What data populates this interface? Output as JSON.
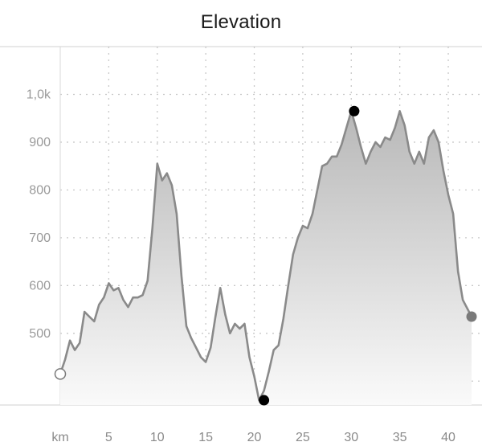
{
  "header": {
    "title": "Elevation"
  },
  "chart_data": {
    "type": "area",
    "title": "Elevation",
    "xlabel": "km",
    "ylabel": "",
    "xlim": [
      0,
      42.4
    ],
    "ylim": [
      350,
      1100
    ],
    "yticks": [
      500,
      600,
      700,
      800,
      900,
      1000
    ],
    "ytick_labels": [
      "500",
      "600",
      "700",
      "800",
      "900",
      "1,0k"
    ],
    "xticks": [
      5,
      10,
      15,
      20,
      25,
      30,
      35,
      40
    ],
    "xtick_labels": [
      "5",
      "10",
      "15",
      "20",
      "25",
      "30",
      "35",
      "40"
    ],
    "grid": true,
    "colors": {
      "line": "#8a8a8a",
      "fill_top": "#b8b8b8",
      "fill_bottom": "#fafafa",
      "grid": "#c8c8c8",
      "marker": "#000000",
      "end_marker": "#7a7a7a"
    },
    "series": [
      {
        "x": [
          0,
          0.5,
          1,
          1.5,
          2,
          2.5,
          3,
          3.5,
          4,
          4.5,
          5,
          5.5,
          6,
          6.5,
          7,
          7.5,
          8,
          8.5,
          9,
          9.5,
          10,
          10.5,
          11,
          11.5,
          12,
          12.5,
          13,
          13.5,
          14,
          14.5,
          15,
          15.5,
          16,
          16.5,
          17,
          17.5,
          18,
          18.5,
          19,
          19.5,
          20,
          20.5,
          21,
          21.5,
          22,
          22.5,
          23,
          23.5,
          24,
          24.5,
          25,
          25.5,
          26,
          26.5,
          27,
          27.5,
          28,
          28.5,
          29,
          29.5,
          30,
          30.5,
          31,
          31.5,
          32,
          32.5,
          33,
          33.5,
          34,
          34.5,
          35,
          35.5,
          36,
          36.5,
          37,
          37.5,
          38,
          38.5,
          39,
          39.5,
          40,
          40.5,
          41,
          41.5,
          42.4
        ],
        "y": [
          415,
          445,
          485,
          465,
          480,
          545,
          535,
          525,
          560,
          575,
          605,
          590,
          595,
          570,
          555,
          575,
          575,
          580,
          610,
          720,
          855,
          820,
          835,
          810,
          750,
          620,
          515,
          490,
          470,
          450,
          440,
          470,
          535,
          595,
          540,
          500,
          520,
          510,
          520,
          450,
          410,
          360,
          380,
          420,
          465,
          475,
          530,
          600,
          665,
          700,
          725,
          720,
          750,
          800,
          850,
          855,
          870,
          870,
          895,
          930,
          965,
          930,
          890,
          855,
          880,
          900,
          890,
          910,
          905,
          930,
          965,
          935,
          880,
          855,
          880,
          855,
          910,
          925,
          900,
          840,
          790,
          750,
          630,
          570,
          535
        ]
      }
    ],
    "markers": [
      {
        "label": "start",
        "x": 0,
        "y": 415,
        "style": "hollow"
      },
      {
        "label": "min",
        "x": 21,
        "y": 360,
        "style": "filled"
      },
      {
        "label": "max",
        "x": 30.3,
        "y": 965,
        "style": "filled"
      },
      {
        "label": "end",
        "x": 42.4,
        "y": 535,
        "style": "filled-gray"
      }
    ]
  }
}
